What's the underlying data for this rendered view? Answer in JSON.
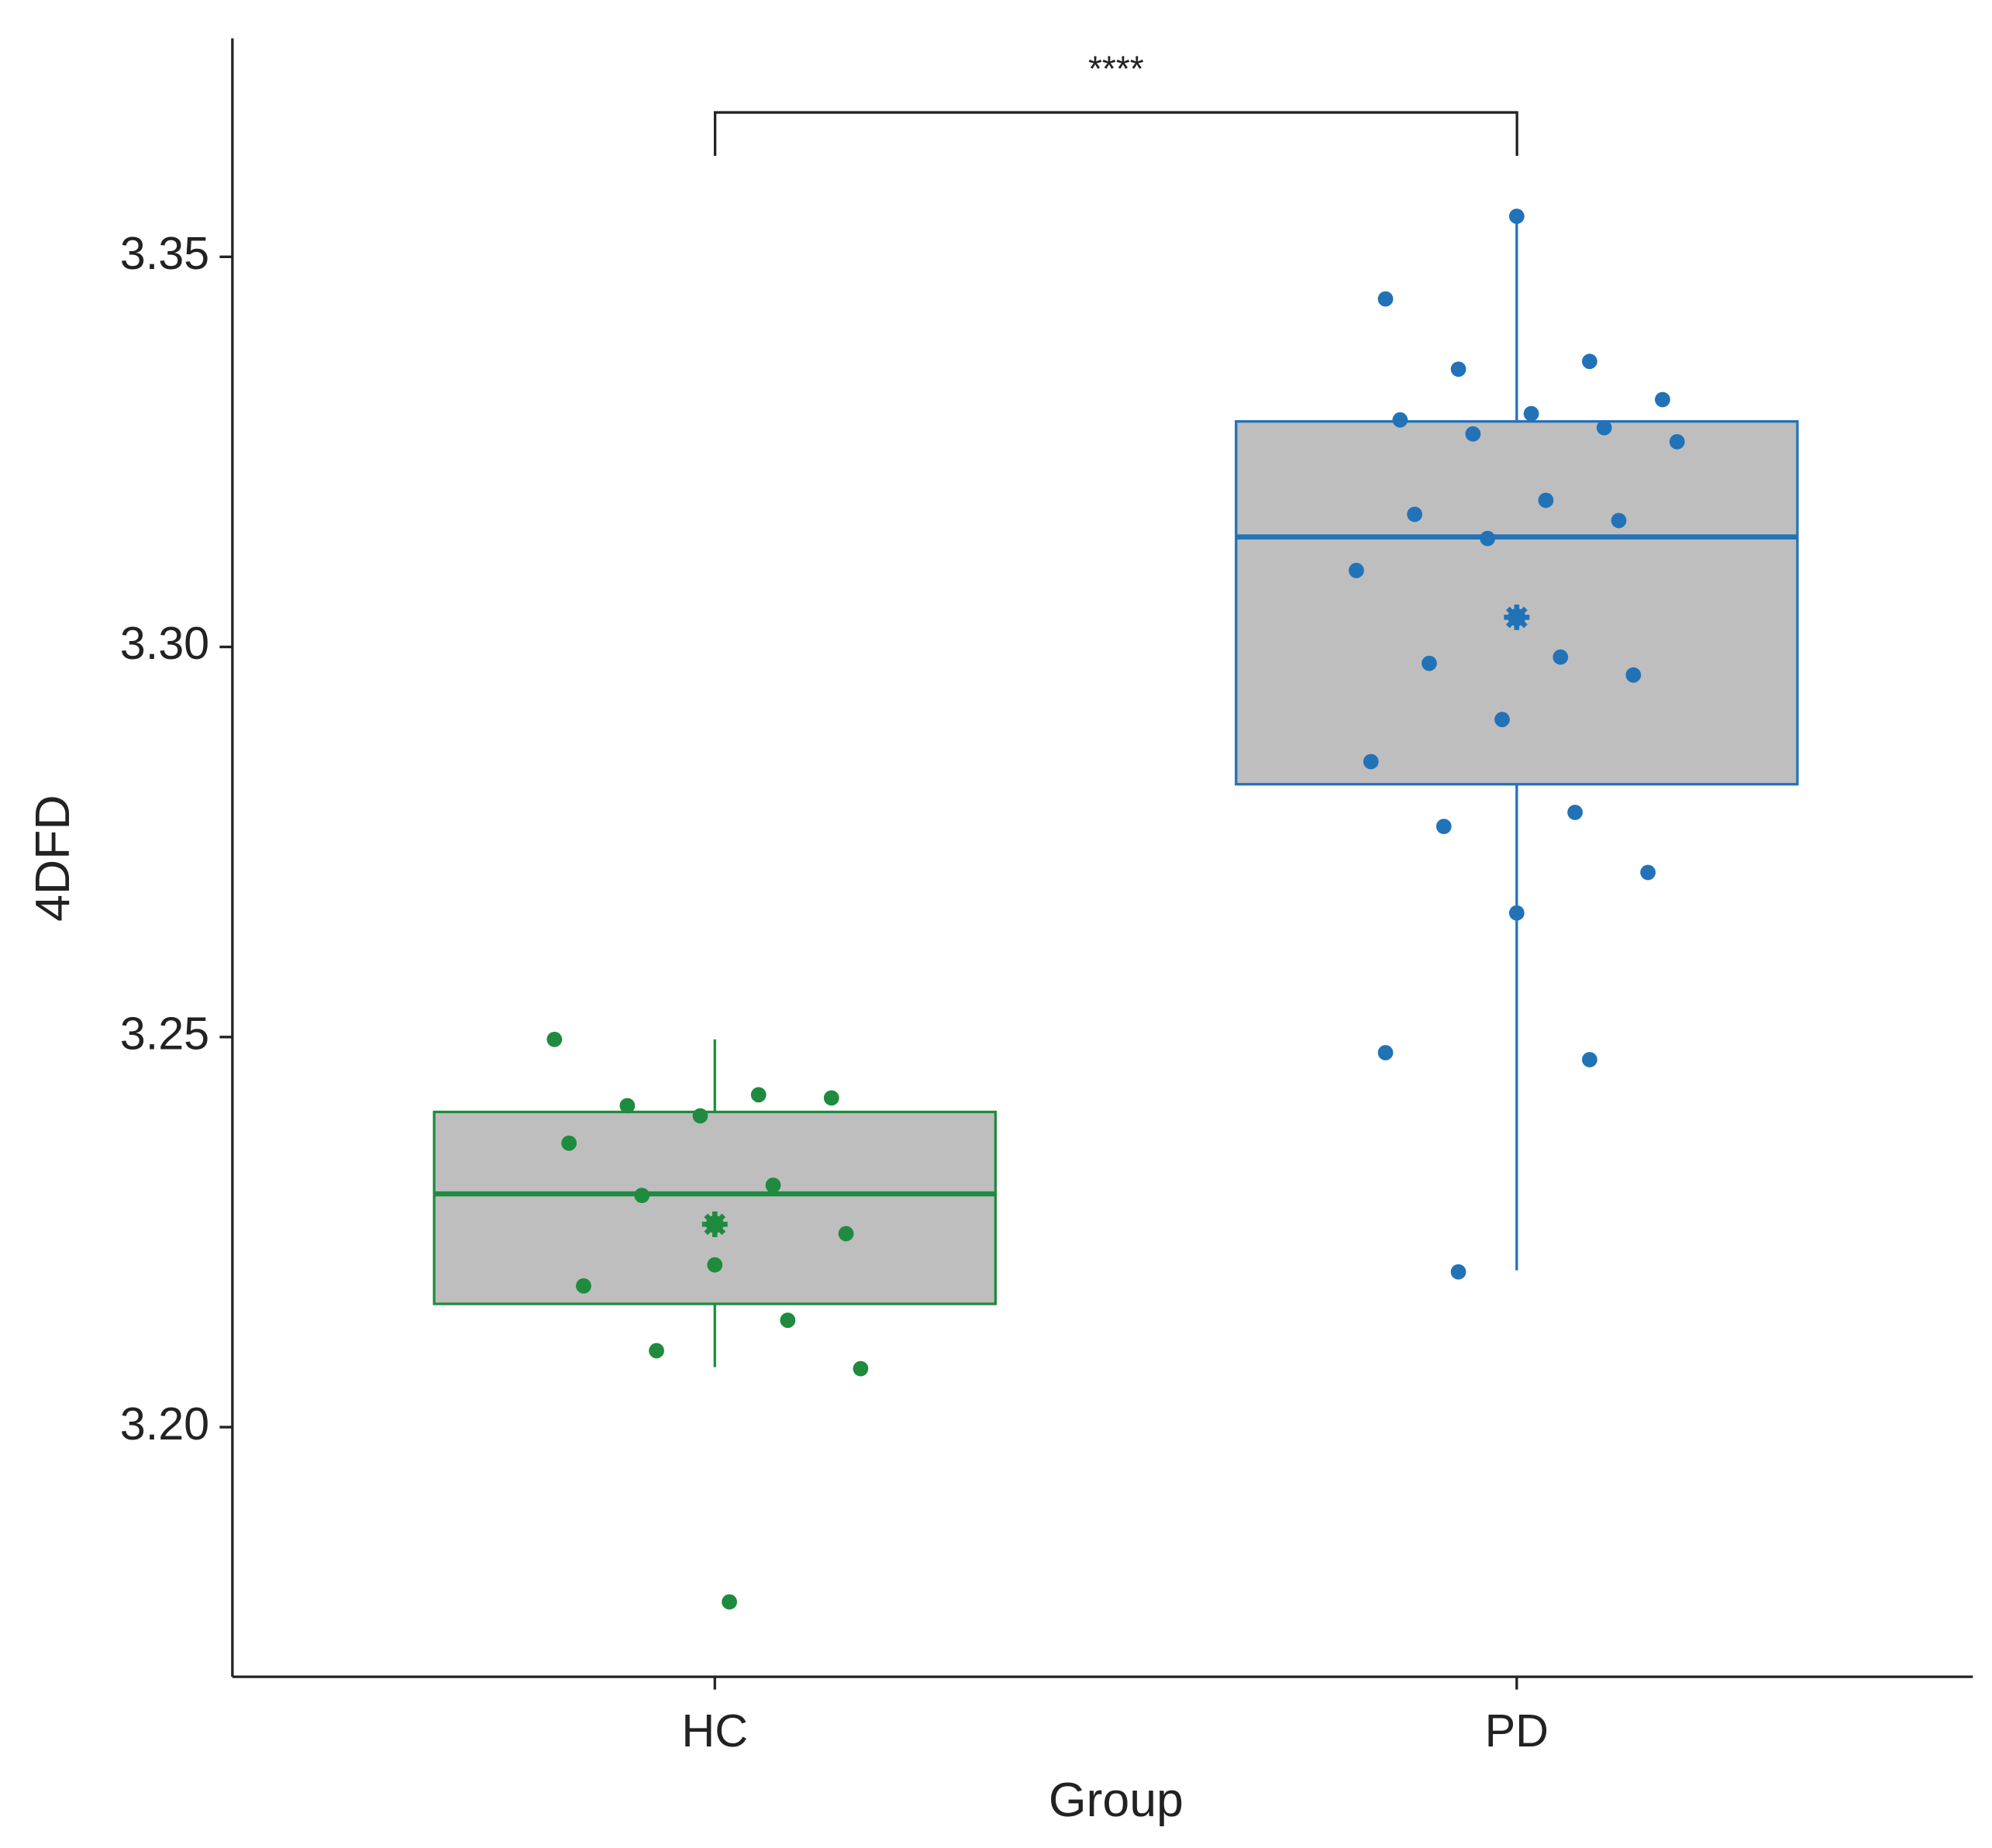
{
  "chart_data": {
    "type": "box",
    "x_label": "Group",
    "y_label": "4DFD",
    "annotation": "****",
    "categories": [
      "HC",
      "PD"
    ],
    "ylim": [
      3.168,
      3.378
    ],
    "yticks": [
      {
        "value": 3.2,
        "label": "3.20"
      },
      3.25,
      {
        "value": 3.3,
        "label": "3.30"
      },
      3.35
    ],
    "box_fill": "#bebebe",
    "groups": [
      {
        "color": "#1e8b3e",
        "whisker_low": 3.2077,
        "q1": 3.2158,
        "median": 3.2299,
        "q3": 3.2404,
        "whisker_high": 3.2497,
        "mean": 3.226,
        "points": [
          3.2497,
          3.2426,
          3.2412,
          3.2422,
          3.2399,
          3.2364,
          3.231,
          3.2297,
          3.2248,
          3.2208,
          3.2181,
          3.2137,
          3.2098,
          3.2075,
          3.1776
        ]
      },
      {
        "color": "#2272b8",
        "whisker_low": 3.2201,
        "q1": 3.2824,
        "median": 3.3141,
        "q3": 3.3289,
        "whisker_high": 3.3551,
        "mean": 3.3038,
        "points": [
          3.3552,
          3.3446,
          3.3366,
          3.3356,
          3.3317,
          3.3299,
          3.3291,
          3.3281,
          3.3273,
          3.3263,
          3.3188,
          3.317,
          3.3162,
          3.3139,
          3.3098,
          3.2987,
          3.2979,
          3.2964,
          3.2907,
          3.2853,
          3.2788,
          3.277,
          3.2711,
          3.2659,
          3.248,
          3.2471,
          3.2199
        ]
      }
    ]
  }
}
